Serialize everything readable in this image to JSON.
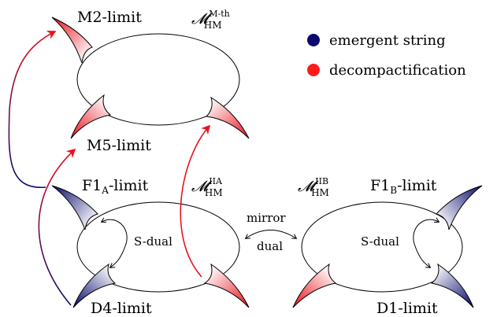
{
  "labels": {
    "m2": "M2-limit",
    "m5": "M5-limit",
    "f1a": {
      "base": "F1",
      "sub": "A",
      "tail": "-limit"
    },
    "d4": "D4-limit",
    "f1b": {
      "base": "F1",
      "sub": "B",
      "tail": "-limit"
    },
    "d1": "D1-limit"
  },
  "moduli": {
    "mth": {
      "sym": "𝓜",
      "sup": "M-th",
      "sub": "HM"
    },
    "iia": {
      "sym": "𝓜",
      "sup": "IIA",
      "sub": "HM"
    },
    "iib": {
      "sym": "𝓜",
      "sup": "IIB",
      "sub": "HM"
    }
  },
  "arrows": {
    "mirror": "mirror",
    "dual": "dual",
    "sdual_left": "S-dual",
    "sdual_right": "S-dual"
  },
  "legend": [
    {
      "label": "emergent string",
      "color": "#0a0a6e"
    },
    {
      "label": "decompactification",
      "color": "#ff1a1a"
    }
  ],
  "colors": {
    "blue": "#0a0a6e",
    "red": "#e8141e",
    "purple_mid": "#7a1a7a"
  }
}
